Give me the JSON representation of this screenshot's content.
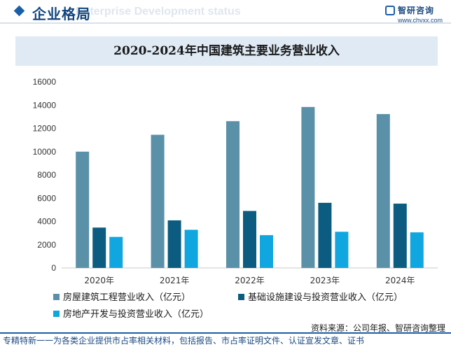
{
  "header": {
    "title": "企业格局",
    "subtitle": "Enterprise Development status",
    "brand_name": "智研咨询",
    "brand_url": "www.chyxx.com"
  },
  "chart_data": {
    "type": "bar",
    "title": "2020-2024年中国建筑主要业务营业收入",
    "categories": [
      "2020年",
      "2021年",
      "2022年",
      "2023年",
      "2024年"
    ],
    "series": [
      {
        "name": "房屋建筑工程营业收入（亿元）",
        "values": [
          10000,
          11450,
          12620,
          13840,
          13230
        ],
        "color": "#5b91a8"
      },
      {
        "name": "基础设施建设与投资营业收入（亿元）",
        "values": [
          3470,
          4090,
          4900,
          5600,
          5530
        ],
        "color": "#0b5c80"
      },
      {
        "name": "房地产开发与投资营业收入（亿元）",
        "values": [
          2670,
          3280,
          2820,
          3110,
          3060
        ],
        "color": "#10a6df"
      }
    ],
    "ylim": [
      0,
      16000
    ],
    "yticks": [
      0,
      2000,
      4000,
      6000,
      8000,
      10000,
      12000,
      14000,
      16000
    ],
    "ytick_labels": [
      "0",
      "2000",
      "4000",
      "6000",
      "8000",
      "10000",
      "12000",
      "14000",
      "16000"
    ],
    "grid": false,
    "legend_position": "bottom"
  },
  "source": "资料来源：公司年报、智研咨询整理",
  "footer": "专精特新一一为各类企业提供市占率相关材料，包括报告、市占率证明文件、认证宣发文章、证书"
}
